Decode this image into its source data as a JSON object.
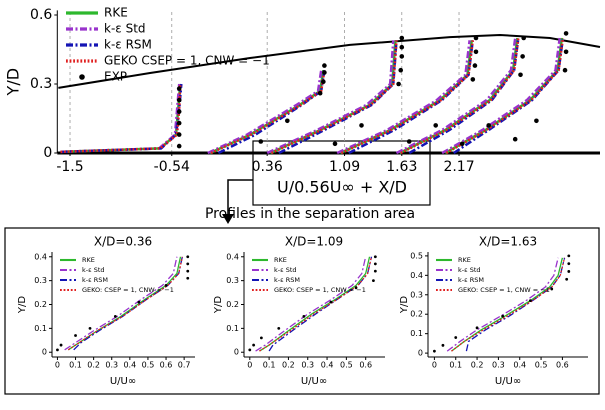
{
  "panel_title": "Profiles in the separation area",
  "chart_data": [
    {
      "type": "line",
      "xlabel": "U/0.56U∞ + X/D",
      "ylabel": "Y/D",
      "xlim": [
        -1.62,
        3.5
      ],
      "ylim": [
        0,
        0.62
      ],
      "xticks": [
        -1.5,
        -0.54,
        0.36,
        1.09,
        1.63,
        2.17
      ],
      "yticks": [
        0,
        0.3,
        0.6
      ],
      "grid": true,
      "wall": {
        "x": [
          -1.61,
          -0.745,
          0.198,
          1.14,
          2.085,
          2.557,
          3.028,
          3.5
        ],
        "y": [
          0.283,
          0.348,
          0.413,
          0.47,
          0.504,
          0.513,
          0.5,
          0.461
        ]
      },
      "series": [
        {
          "name": "RKE",
          "color": "#2db82d",
          "style": "solid",
          "x": [
            -1.59,
            -0.65,
            -0.5,
            -0.48,
            -0.46,
            null,
            -0.18,
            0.2,
            0.67,
            0.86,
            0.89,
            null,
            0.39,
            0.86,
            1.33,
            1.54,
            1.57,
            null,
            1.05,
            1.52,
            1.99,
            2.25,
            2.29,
            null,
            1.61,
            2.04,
            2.46,
            2.68,
            2.72,
            null,
            2.04,
            2.42,
            2.84,
            3.1,
            3.14
          ],
          "values": [
            0.005,
            0.02,
            0.08,
            0.19,
            0.3,
            null,
            0,
            0.08,
            0.21,
            0.27,
            0.36,
            null,
            0,
            0.1,
            0.21,
            0.3,
            0.49,
            null,
            0,
            0.1,
            0.23,
            0.34,
            0.49,
            null,
            0,
            0.1,
            0.23,
            0.36,
            0.5,
            null,
            0,
            0.1,
            0.23,
            0.36,
            0.5
          ]
        },
        {
          "name": "k-ε Std",
          "color": "#9933cc",
          "style": "dashdot",
          "x": [
            -1.59,
            -0.66,
            -0.51,
            -0.49,
            -0.47,
            null,
            -0.2,
            0.17,
            0.64,
            0.84,
            0.87,
            null,
            0.36,
            0.83,
            1.3,
            1.52,
            1.55,
            null,
            1.02,
            1.49,
            1.96,
            2.23,
            2.27,
            null,
            1.58,
            2.01,
            2.43,
            2.66,
            2.7,
            null,
            2.01,
            2.39,
            2.81,
            3.08,
            3.12
          ],
          "values": [
            0.005,
            0.02,
            0.08,
            0.19,
            0.3,
            null,
            0,
            0.08,
            0.21,
            0.27,
            0.36,
            null,
            0,
            0.1,
            0.21,
            0.3,
            0.49,
            null,
            0,
            0.1,
            0.23,
            0.34,
            0.49,
            null,
            0,
            0.1,
            0.23,
            0.36,
            0.5,
            null,
            0,
            0.1,
            0.23,
            0.36,
            0.5
          ]
        },
        {
          "name": "k-ε RSM",
          "color": "#1414b4",
          "style": "dashdot",
          "x": [
            -1.59,
            -0.64,
            -0.5,
            -0.47,
            -0.45,
            null,
            -0.1,
            0.25,
            0.69,
            0.87,
            0.9,
            null,
            0.47,
            0.9,
            1.35,
            1.55,
            1.58,
            null,
            1.13,
            1.56,
            2.01,
            2.26,
            2.3,
            null,
            1.7,
            2.08,
            2.48,
            2.69,
            2.73,
            null,
            2.12,
            2.45,
            2.86,
            3.11,
            3.15
          ],
          "values": [
            0.005,
            0.02,
            0.08,
            0.19,
            0.3,
            null,
            0,
            0.08,
            0.21,
            0.27,
            0.36,
            null,
            0,
            0.1,
            0.21,
            0.3,
            0.49,
            null,
            0,
            0.1,
            0.23,
            0.34,
            0.49,
            null,
            0,
            0.1,
            0.23,
            0.36,
            0.5,
            null,
            0,
            0.1,
            0.23,
            0.36,
            0.5
          ]
        },
        {
          "name": "GEKO CSEP = 1, CNW = −1",
          "color": "#e02020",
          "style": "dotted",
          "x": [
            -1.59,
            -0.65,
            -0.49,
            -0.47,
            -0.46,
            null,
            -0.17,
            0.21,
            0.68,
            0.87,
            0.9,
            null,
            0.4,
            0.87,
            1.34,
            1.55,
            1.58,
            null,
            1.06,
            1.53,
            2.0,
            2.26,
            2.3,
            null,
            1.62,
            2.05,
            2.47,
            2.69,
            2.73,
            null,
            2.05,
            2.43,
            2.85,
            3.11,
            3.15
          ],
          "values": [
            0.005,
            0.02,
            0.08,
            0.19,
            0.3,
            null,
            0,
            0.08,
            0.21,
            0.27,
            0.36,
            null,
            0,
            0.1,
            0.21,
            0.3,
            0.49,
            null,
            0,
            0.1,
            0.23,
            0.34,
            0.49,
            null,
            0,
            0.1,
            0.23,
            0.36,
            0.5,
            null,
            0,
            0.1,
            0.23,
            0.36,
            0.5
          ]
        },
        {
          "name": "EXP",
          "color": "#000000",
          "style": "markers",
          "x": [
            -0.47,
            -0.47,
            -0.47,
            -0.47,
            -0.47,
            -0.47,
            0.3,
            0.55,
            0.86,
            0.89,
            0.9,
            0.9,
            1.0,
            1.25,
            1.6,
            1.62,
            1.63,
            1.63,
            1.63,
            1.7,
            1.95,
            2.3,
            2.32,
            2.33,
            2.33,
            2.2,
            2.45,
            2.75,
            2.77,
            2.78,
            2.7,
            2.9,
            3.17,
            3.18,
            3.18
          ],
          "values": [
            0.03,
            0.08,
            0.13,
            0.18,
            0.23,
            0.28,
            0.05,
            0.14,
            0.26,
            0.31,
            0.35,
            0.38,
            0.04,
            0.12,
            0.3,
            0.36,
            0.42,
            0.46,
            0.5,
            0.05,
            0.12,
            0.32,
            0.38,
            0.44,
            0.5,
            0.04,
            0.12,
            0.34,
            0.42,
            0.5,
            0.06,
            0.14,
            0.36,
            0.44,
            0.52
          ]
        }
      ]
    },
    {
      "type": "line",
      "title": "X/D=0.36",
      "xlabel": "U/U∞",
      "ylabel": "Y/D",
      "xlim": [
        -0.03,
        0.76
      ],
      "ylim": [
        -0.02,
        0.42
      ],
      "xticks": [
        0,
        0.1,
        0.2,
        0.3,
        0.4,
        0.5,
        0.6,
        0.7
      ],
      "yticks": [
        0,
        0.1,
        0.2,
        0.3,
        0.4
      ],
      "series": [
        {
          "name": "RKE",
          "color": "#2db82d",
          "style": "solid",
          "x": [
            0.06,
            0.12,
            0.22,
            0.35,
            0.48,
            0.6,
            0.66,
            0.68
          ],
          "values": [
            0.01,
            0.04,
            0.09,
            0.15,
            0.22,
            0.28,
            0.33,
            0.4
          ]
        },
        {
          "name": "k-ε Std",
          "color": "#9933cc",
          "style": "dashdot",
          "x": [
            0.04,
            0.1,
            0.2,
            0.33,
            0.46,
            0.58,
            0.64,
            0.66
          ],
          "values": [
            0.01,
            0.04,
            0.09,
            0.15,
            0.22,
            0.28,
            0.33,
            0.4
          ]
        },
        {
          "name": "k-ε RSM",
          "color": "#1414b4",
          "style": "dashdot",
          "x": [
            0.09,
            0.13,
            0.23,
            0.36,
            0.49,
            0.61,
            0.67,
            0.69
          ],
          "values": [
            0.01,
            0.04,
            0.09,
            0.15,
            0.22,
            0.28,
            0.33,
            0.4
          ]
        },
        {
          "name": "GEKO: CSEP = 1, CNW = −1",
          "color": "#e02020",
          "style": "dotted",
          "x": [
            0.06,
            0.12,
            0.22,
            0.36,
            0.49,
            0.61,
            0.67,
            0.69
          ],
          "values": [
            0.01,
            0.04,
            0.09,
            0.15,
            0.22,
            0.28,
            0.33,
            0.4
          ]
        },
        {
          "color": "#000000",
          "style": "markers",
          "x": [
            0,
            0.02,
            0.1,
            0.18,
            0.32,
            0.45,
            0.6,
            0.72,
            0.72,
            0.72,
            0.72
          ],
          "values": [
            0.01,
            0.03,
            0.07,
            0.1,
            0.15,
            0.21,
            0.28,
            0.31,
            0.34,
            0.37,
            0.4
          ]
        }
      ]
    },
    {
      "type": "line",
      "title": "X/D=1.09",
      "xlabel": "U/U∞",
      "ylabel": "Y/D",
      "xlim": [
        -0.03,
        0.7
      ],
      "ylim": [
        -0.02,
        0.42
      ],
      "xticks": [
        0,
        0.1,
        0.2,
        0.3,
        0.4,
        0.5,
        0.6
      ],
      "yticks": [
        0,
        0.1,
        0.2,
        0.3,
        0.4
      ],
      "series": [
        {
          "name": "RKE",
          "color": "#2db82d",
          "style": "solid",
          "x": [
            0.05,
            0.1,
            0.2,
            0.32,
            0.44,
            0.55,
            0.6,
            0.62
          ],
          "values": [
            0.005,
            0.03,
            0.09,
            0.16,
            0.22,
            0.28,
            0.33,
            0.4
          ]
        },
        {
          "name": "k-ε Std",
          "color": "#9933cc",
          "style": "dashdot",
          "x": [
            0.03,
            0.08,
            0.18,
            0.3,
            0.42,
            0.53,
            0.58,
            0.6
          ],
          "values": [
            0.005,
            0.03,
            0.09,
            0.16,
            0.22,
            0.28,
            0.33,
            0.4
          ]
        },
        {
          "name": "k-ε RSM",
          "color": "#1414b4",
          "style": "dashdot",
          "x": [
            0.1,
            0.12,
            0.22,
            0.34,
            0.45,
            0.56,
            0.61,
            0.63
          ],
          "values": [
            0.005,
            0.03,
            0.09,
            0.16,
            0.22,
            0.28,
            0.33,
            0.4
          ]
        },
        {
          "name": "GEKO: CSEP = 1, CNW = −1",
          "color": "#e02020",
          "style": "dotted",
          "x": [
            0.05,
            0.1,
            0.21,
            0.33,
            0.45,
            0.56,
            0.61,
            0.63
          ],
          "values": [
            0.005,
            0.03,
            0.09,
            0.16,
            0.22,
            0.28,
            0.33,
            0.4
          ]
        },
        {
          "color": "#000000",
          "style": "markers",
          "x": [
            0,
            0.02,
            0.06,
            0.15,
            0.28,
            0.42,
            0.55,
            0.64,
            0.65,
            0.65,
            0.65
          ],
          "values": [
            0.01,
            0.03,
            0.06,
            0.1,
            0.15,
            0.21,
            0.27,
            0.3,
            0.34,
            0.37,
            0.4
          ]
        }
      ]
    },
    {
      "type": "line",
      "title": "X/D=1.63",
      "xlabel": "U/U∞",
      "ylabel": "Y/D",
      "xlim": [
        -0.03,
        0.72
      ],
      "ylim": [
        -0.02,
        0.52
      ],
      "xticks": [
        0,
        0.1,
        0.2,
        0.3,
        0.4,
        0.5,
        0.6
      ],
      "yticks": [
        0,
        0.1,
        0.2,
        0.3,
        0.4,
        0.5
      ],
      "series": [
        {
          "name": "RKE",
          "color": "#2db82d",
          "style": "solid",
          "x": [
            0.08,
            0.14,
            0.22,
            0.33,
            0.45,
            0.54,
            0.58,
            0.6
          ],
          "values": [
            0.01,
            0.06,
            0.12,
            0.19,
            0.27,
            0.34,
            0.4,
            0.49
          ]
        },
        {
          "name": "k-ε Std",
          "color": "#9933cc",
          "style": "dashdot",
          "x": [
            0.06,
            0.12,
            0.2,
            0.31,
            0.43,
            0.52,
            0.56,
            0.58
          ],
          "values": [
            0.01,
            0.06,
            0.12,
            0.19,
            0.27,
            0.34,
            0.4,
            0.49
          ]
        },
        {
          "name": "k-ε RSM",
          "color": "#1414b4",
          "style": "dashdot",
          "x": [
            0.15,
            0.16,
            0.24,
            0.35,
            0.46,
            0.55,
            0.59,
            0.61
          ],
          "values": [
            0.01,
            0.06,
            0.12,
            0.19,
            0.27,
            0.34,
            0.4,
            0.49
          ]
        },
        {
          "name": "GEKO: CSEP = 1, CNW = −1",
          "color": "#e02020",
          "style": "dotted",
          "x": [
            0.08,
            0.14,
            0.23,
            0.34,
            0.46,
            0.55,
            0.59,
            0.61
          ],
          "values": [
            0.01,
            0.06,
            0.12,
            0.19,
            0.27,
            0.34,
            0.4,
            0.49
          ]
        },
        {
          "color": "#000000",
          "style": "markers",
          "x": [
            0,
            0.04,
            0.1,
            0.2,
            0.32,
            0.45,
            0.55,
            0.62,
            0.63,
            0.63,
            0.63
          ],
          "values": [
            0.01,
            0.04,
            0.08,
            0.13,
            0.19,
            0.27,
            0.33,
            0.38,
            0.42,
            0.46,
            0.5
          ]
        }
      ]
    }
  ]
}
